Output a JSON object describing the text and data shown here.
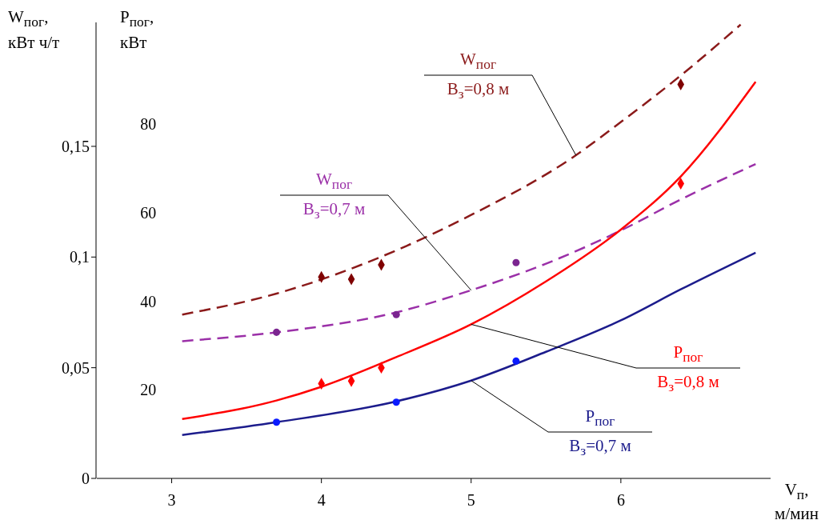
{
  "chart_data": {
    "type": "line",
    "xlabel": "V$_{п}$, м/мин",
    "ylabel": "P$_{пог}$, кВт",
    "y2label": "W$_{пог}$, кВт ч/т",
    "xlim": [
      2.5,
      7.0
    ],
    "xticks": [
      3,
      4,
      5,
      6
    ],
    "ylim": [
      0,
      103
    ],
    "yticks": [
      20,
      40,
      60,
      80
    ],
    "y2lim": [
      0,
      0.206
    ],
    "y2ticks": [
      0,
      {
        "value": 0.05,
        "label": "0,05"
      },
      {
        "value": 0.1,
        "label": "0,1"
      },
      {
        "value": 0.15,
        "label": "0,15"
      }
    ],
    "series": [
      {
        "name": "W$_{пог}$\nB$_{з}$=0,8 м",
        "axis": "y2",
        "line_style": "dashed",
        "color": "#8b1a1a",
        "x": [
          3.07,
          3.7,
          4.5,
          5.0,
          5.7,
          6.0,
          6.4,
          6.8
        ],
        "values": [
          0.074,
          0.0835,
          0.103,
          0.119,
          0.146,
          0.161,
          0.182,
          0.205
        ]
      },
      {
        "type": "scatter",
        "axis": "y2",
        "marker": "diamond",
        "color": "#7f0000",
        "x": [
          4.0,
          4.2,
          4.4,
          6.4
        ],
        "values": [
          0.091,
          0.09,
          0.0965,
          0.178
        ]
      },
      {
        "name": "W$_{пог}$\nB$_{з}$=0,7 м",
        "axis": "y2",
        "line_style": "dashed",
        "color": "#9b30a8",
        "x": [
          3.07,
          3.7,
          4.5,
          5.0,
          5.5,
          6.0,
          6.4,
          6.9
        ],
        "values": [
          0.062,
          0.066,
          0.075,
          0.085,
          0.097,
          0.112,
          0.126,
          0.142
        ]
      },
      {
        "type": "scatter",
        "axis": "y2",
        "marker": "circle",
        "color": "#7b2590",
        "x": [
          3.7,
          4.5,
          5.3
        ],
        "values": [
          0.066,
          0.074,
          0.0975
        ]
      },
      {
        "name": "P$_{пог}$\nB$_{з}$=0,8 м",
        "line_style": "solid",
        "color": "#ff0000",
        "x": [
          3.07,
          3.7,
          4.0,
          4.5,
          5.0,
          5.5,
          6.0,
          6.4,
          6.9
        ],
        "values": [
          13.4,
          17.6,
          20.7,
          27.4,
          34.8,
          44.5,
          56.2,
          68.2,
          89.6
        ]
      },
      {
        "type": "scatter",
        "marker": "diamond",
        "color": "#ff0000",
        "x": [
          4.0,
          4.2,
          4.4,
          6.4
        ],
        "values": [
          21.4,
          22,
          25,
          66.6
        ]
      },
      {
        "name": "P$_{пог}$\nB$_{з}$=0,7 м",
        "line_style": "solid",
        "color": "#1c1c8c",
        "x": [
          3.07,
          3.7,
          4.5,
          5.0,
          5.5,
          6.0,
          6.4,
          6.9
        ],
        "values": [
          9.8,
          12.7,
          17.4,
          22.1,
          28.6,
          35.7,
          42.7,
          51
        ]
      },
      {
        "type": "scatter",
        "marker": "circle",
        "color": "#0a1aff",
        "x": [
          3.7,
          4.5,
          5.3
        ],
        "values": [
          12.7,
          17.2,
          26.5
        ]
      }
    ]
  }
}
